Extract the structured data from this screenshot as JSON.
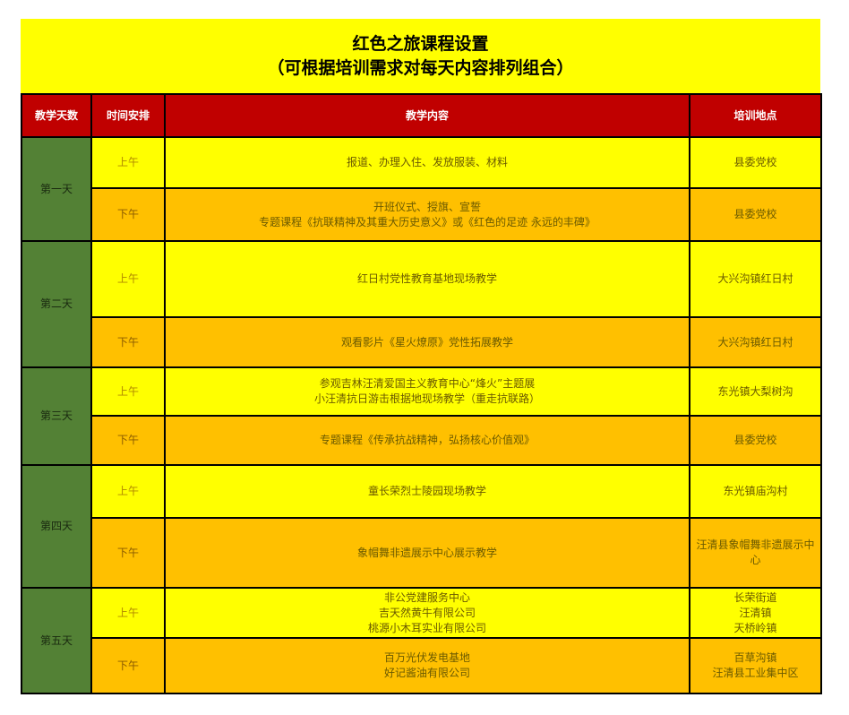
{
  "title": {
    "line1": "红色之旅课程设置",
    "line2": "（可根据培训需求对每天内容排列组合）"
  },
  "headers": [
    "教学天数",
    "时间安排",
    "教学内容",
    "培训地点"
  ],
  "colors": {
    "header": "#c00000",
    "day": "#538135",
    "morning": "#ffff00",
    "afternoon": "#ffc000",
    "title_bg": "#ffff00"
  },
  "days": [
    {
      "day": "第一天",
      "am": {
        "time": "上午",
        "content": [
          "报道、办理入住、发放服装、材料"
        ],
        "place": [
          "县委党校"
        ]
      },
      "pm": {
        "time": "下午",
        "content": [
          "开班仪式、授旗、宣誓",
          "专题课程《抗联精神及其重大历史意义》或《红色的足迹 永远的丰碑》"
        ],
        "place": [
          "县委党校"
        ]
      }
    },
    {
      "day": "第二天",
      "am": {
        "time": "上午",
        "content": [
          "红日村党性教育基地现场教学"
        ],
        "place": [
          "大兴沟镇红日村"
        ]
      },
      "pm": {
        "time": "下午",
        "content": [
          "观看影片《星火燎原》党性拓展教学"
        ],
        "place": [
          "大兴沟镇红日村"
        ]
      }
    },
    {
      "day": "第三天",
      "am": {
        "time": "上午",
        "content": [
          "参观吉林汪清爱国主义教育中心“烽火”主题展",
          "小汪清抗日游击根据地现场教学（重走抗联路）"
        ],
        "place": [
          "东光镇大梨树沟"
        ]
      },
      "pm": {
        "time": "下午",
        "content": [
          "专题课程《传承抗战精神，弘扬核心价值观》"
        ],
        "place": [
          "县委党校"
        ]
      }
    },
    {
      "day": "第四天",
      "am": {
        "time": "上午",
        "content": [
          "童长荣烈士陵园现场教学"
        ],
        "place": [
          "东光镇庙沟村"
        ]
      },
      "pm": {
        "time": "下午",
        "content": [
          "象帽舞非遗展示中心展示教学"
        ],
        "place": [
          "汪清县象帽舞非遗展示中心"
        ]
      }
    },
    {
      "day": "第五天",
      "am": {
        "time": "上午",
        "content": [
          "非公党建服务中心",
          "吉天然黄牛有限公司",
          "桃源小木耳实业有限公司"
        ],
        "place": [
          "长荣街道",
          "汪清镇",
          "天桥岭镇"
        ]
      },
      "pm": {
        "time": "下午",
        "content": [
          "百万光伏发电基地",
          "好记酱油有限公司"
        ],
        "place": [
          "百草沟镇",
          "汪清县工业集中区"
        ]
      }
    }
  ]
}
